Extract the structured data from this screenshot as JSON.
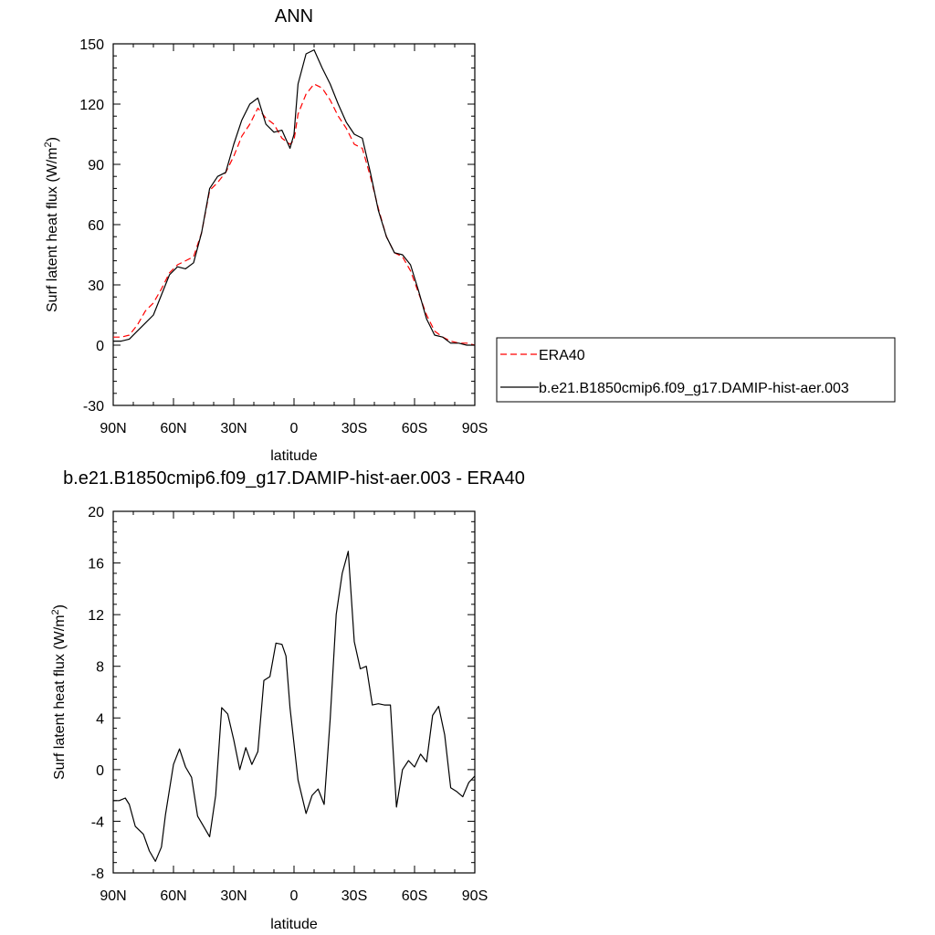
{
  "chart_data": [
    {
      "type": "line",
      "title": "ANN",
      "xlabel": "latitude",
      "ylabel": "Surf latent heat flux (W/m",
      "ylabel_sup": "2",
      "ylabel_close": ")",
      "xlim": [
        90,
        -90
      ],
      "ylim": [
        -30,
        150
      ],
      "xticks": [
        {
          "value": 90,
          "label": "90N"
        },
        {
          "value": 60,
          "label": "60N"
        },
        {
          "value": 30,
          "label": "30N"
        },
        {
          "value": 0,
          "label": "0"
        },
        {
          "value": -30,
          "label": "30S"
        },
        {
          "value": -60,
          "label": "60S"
        },
        {
          "value": -90,
          "label": "90S"
        }
      ],
      "yticks": [
        -30,
        0,
        30,
        60,
        90,
        120,
        150
      ],
      "legend": {
        "placement": "right"
      },
      "series": [
        {
          "name": "ERA40",
          "color": "#ff0000",
          "dash": "dashed",
          "x": [
            90,
            86,
            82,
            78,
            74,
            70,
            66,
            62,
            58,
            54,
            50,
            46,
            42,
            38,
            34,
            30,
            26,
            22,
            18,
            14,
            10,
            6,
            2,
            0,
            -2,
            -6,
            -10,
            -14,
            -18,
            -22,
            -26,
            -30,
            -34,
            -38,
            -42,
            -46,
            -50,
            -54,
            -58,
            -62,
            -66,
            -70,
            -74,
            -78,
            -82,
            -86,
            -90
          ],
          "y": [
            4,
            4,
            5,
            10,
            17,
            21,
            28,
            36,
            40,
            42,
            44,
            56,
            77,
            81,
            86,
            94,
            104,
            110,
            118,
            113,
            110,
            103,
            100,
            102,
            115,
            125,
            130,
            128,
            122,
            114,
            108,
            100,
            98,
            84,
            68,
            54,
            46,
            44,
            37,
            26,
            15,
            7,
            4,
            2,
            1,
            1,
            0
          ]
        },
        {
          "name": "b.e21.B1850cmip6.f09_g17.DAMIP-hist-aer.003",
          "color": "#000000",
          "dash": "solid",
          "x": [
            90,
            86,
            82,
            78,
            74,
            70,
            66,
            62,
            58,
            54,
            50,
            46,
            42,
            38,
            34,
            30,
            26,
            22,
            18,
            14,
            10,
            6,
            2,
            0,
            -2,
            -6,
            -10,
            -14,
            -18,
            -22,
            -26,
            -30,
            -34,
            -38,
            -42,
            -46,
            -50,
            -54,
            -58,
            -62,
            -66,
            -70,
            -74,
            -78,
            -82,
            -86,
            -90
          ],
          "y": [
            2,
            2,
            3,
            7,
            11,
            15,
            25,
            35,
            39,
            38,
            41,
            56,
            78,
            84,
            86,
            100,
            112,
            120,
            123,
            110,
            106,
            107,
            98,
            105,
            130,
            145,
            147,
            138,
            130,
            120,
            111,
            105,
            103,
            86,
            67,
            54,
            46,
            45,
            40,
            27,
            13,
            5,
            4,
            1,
            1,
            0,
            0
          ]
        }
      ]
    },
    {
      "type": "line",
      "title": "b.e21.B1850cmip6.f09_g17.DAMIP-hist-aer.003 - ERA40",
      "xlabel": "latitude",
      "ylabel": "Surf latent heat flux (W/m",
      "ylabel_sup": "2",
      "ylabel_close": ")",
      "xlim": [
        90,
        -90
      ],
      "ylim": [
        -8,
        20
      ],
      "xticks": [
        {
          "value": 90,
          "label": "90N"
        },
        {
          "value": 60,
          "label": "60N"
        },
        {
          "value": 30,
          "label": "30N"
        },
        {
          "value": 0,
          "label": "0"
        },
        {
          "value": -30,
          "label": "30S"
        },
        {
          "value": -60,
          "label": "60S"
        },
        {
          "value": -90,
          "label": "90S"
        }
      ],
      "yticks": [
        -8,
        -4,
        0,
        4,
        8,
        12,
        16,
        20
      ],
      "series": [
        {
          "color": "#000000",
          "dash": "solid",
          "x": [
            90,
            87,
            84,
            82,
            79,
            75,
            72,
            69,
            66,
            64,
            60,
            57,
            54,
            51,
            48,
            45,
            42,
            39,
            36,
            33,
            30,
            27,
            24,
            21,
            18,
            15,
            12,
            9,
            6,
            4,
            2,
            -2,
            -6,
            -9,
            -12,
            -15,
            -18,
            -21,
            -24,
            -27,
            -30,
            -33,
            -36,
            -39,
            -42,
            -45,
            -48,
            -51,
            -54,
            -57,
            -60,
            -63,
            -66,
            -69,
            -72,
            -75,
            -78,
            -81,
            -84,
            -87,
            -90
          ],
          "y": [
            -2.4,
            -2.4,
            -2.2,
            -2.7,
            -4.4,
            -5.0,
            -6.3,
            -7.1,
            -6.0,
            -3.5,
            0.4,
            1.6,
            0.2,
            -0.6,
            -3.6,
            -4.4,
            -5.2,
            -2.0,
            4.8,
            4.3,
            2.3,
            0.0,
            1.7,
            0.4,
            1.4,
            6.9,
            7.2,
            9.8,
            9.7,
            8.8,
            4.8,
            -0.8,
            -3.4,
            -2.0,
            -1.5,
            -2.7,
            3.9,
            12.0,
            15.2,
            16.9,
            9.9,
            7.8,
            8.0,
            5.0,
            5.1,
            5.0,
            5.0,
            -2.9,
            0.0,
            0.7,
            0.2,
            1.2,
            0.6,
            4.2,
            4.9,
            2.7,
            -1.4,
            -1.7,
            -2.1,
            -1.0,
            -0.5
          ]
        }
      ]
    }
  ]
}
